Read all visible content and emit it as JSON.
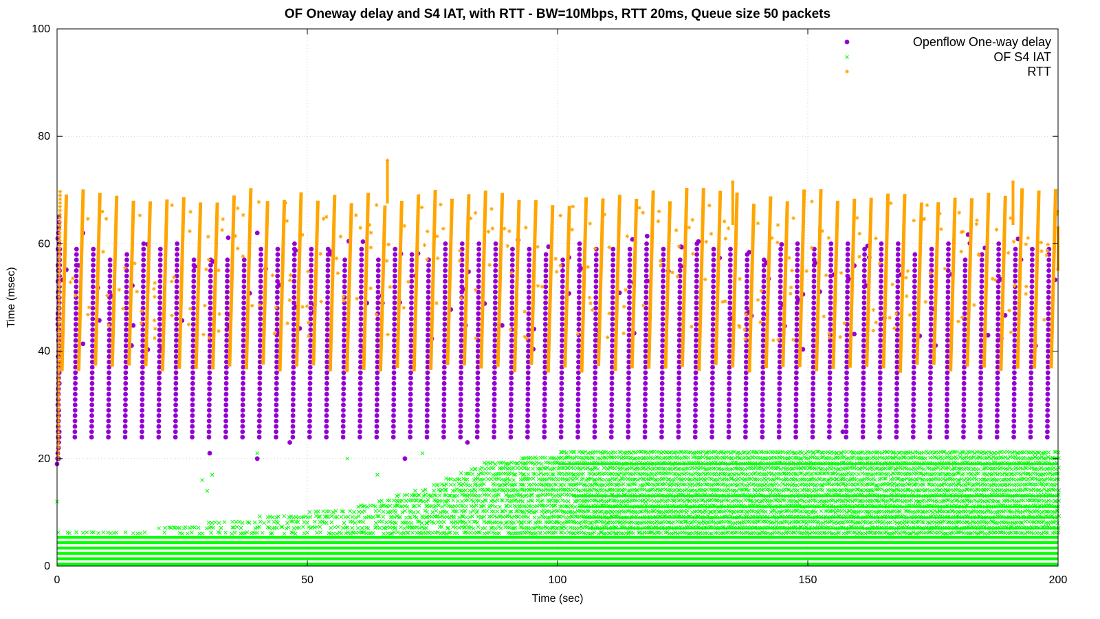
{
  "chart_data": {
    "type": "scatter",
    "title": "OF Oneway delay and S4 IAT, with RTT - BW=10Mbps, RTT 20ms, Queue size 50 packets",
    "xlabel": "Time (sec)",
    "ylabel": "Time (msec)",
    "xlim": [
      0,
      200
    ],
    "ylim": [
      0,
      100
    ],
    "xticks": [
      0,
      50,
      100,
      150,
      200
    ],
    "yticks": [
      0,
      20,
      40,
      60,
      80,
      100
    ],
    "grid": true,
    "legend_position": "top-right",
    "series": [
      {
        "name": "Openflow One-way delay",
        "marker": "circle",
        "color": "#9400d3",
        "pattern": "sawtooth",
        "cycle_period": 3.35,
        "low": 24,
        "high": 61,
        "points": [
          [
            0,
            19
          ],
          [
            0.3,
            20
          ],
          [
            30.5,
            21
          ],
          [
            40,
            20
          ],
          [
            40,
            62
          ],
          [
            46.5,
            23
          ],
          [
            69.5,
            20
          ],
          [
            82,
            23
          ],
          [
            157,
            25
          ]
        ]
      },
      {
        "name": "OF S4 IAT",
        "marker": "cross",
        "color": "#00ff00",
        "dense_band": [
          0,
          5
        ],
        "upper_envelope": [
          [
            0,
            6
          ],
          [
            20,
            7
          ],
          [
            40,
            9
          ],
          [
            60,
            11
          ],
          [
            75,
            15
          ],
          [
            85,
            19
          ],
          [
            100,
            21
          ],
          [
            200,
            21
          ]
        ],
        "points": [
          [
            0,
            12
          ],
          [
            29,
            16
          ],
          [
            30,
            14
          ],
          [
            31,
            17
          ],
          [
            40,
            21
          ],
          [
            58,
            20
          ],
          [
            64,
            17
          ],
          [
            73,
            21
          ]
        ]
      },
      {
        "name": "RTT",
        "marker": "star",
        "color": "#ffa500",
        "pattern": "sawtooth",
        "cycle_period": 3.35,
        "low": 36,
        "high": 70.5,
        "points": [
          [
            66,
            75.5
          ],
          [
            135,
            71.5
          ],
          [
            191,
            71.5
          ],
          [
            200,
            63
          ]
        ]
      }
    ]
  }
}
